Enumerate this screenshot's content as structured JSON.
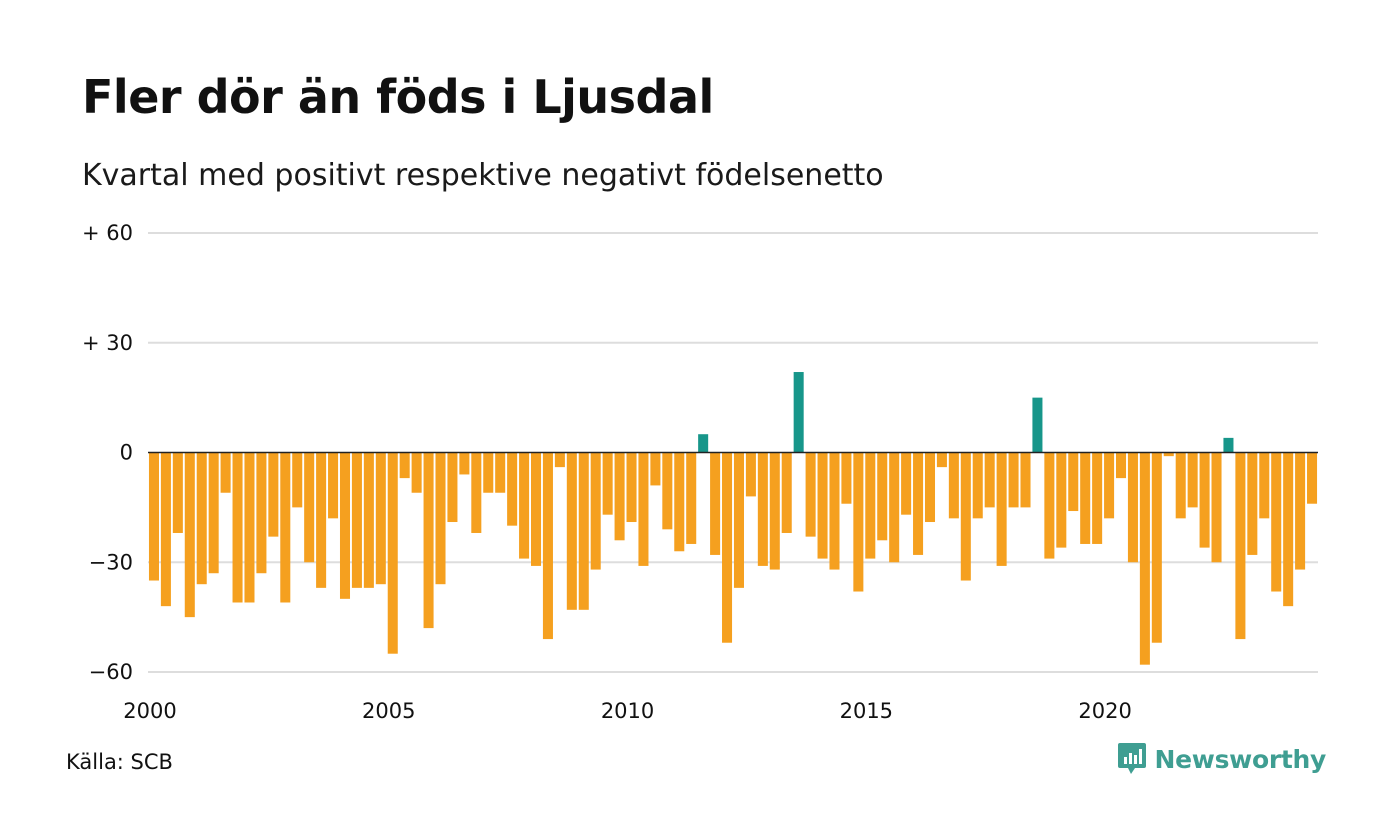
{
  "title": "Fler dör än föds i Ljusdal",
  "subtitle": "Kvartal med positivt respektive negativt födelsenetto",
  "source": "Källa: SCB",
  "logo": {
    "text": "Newsworthy",
    "icon": "chart-speech-bubble-icon"
  },
  "colors": {
    "negative": "#f5a01f",
    "positive": "#17968a",
    "grid": "#dddddd",
    "zero": "#222222"
  },
  "chart_data": {
    "type": "bar",
    "x_start": 2000,
    "x_step": 0.25,
    "ylim": [
      -60,
      60
    ],
    "yticks": [
      {
        "value": 60,
        "label": "+ 60"
      },
      {
        "value": 30,
        "label": "+ 30"
      },
      {
        "value": 0,
        "label": "0"
      },
      {
        "value": -30,
        "label": "−30"
      },
      {
        "value": -60,
        "label": "−60"
      }
    ],
    "xticks": [
      {
        "value": 2000,
        "label": "2000"
      },
      {
        "value": 2005,
        "label": "2005"
      },
      {
        "value": 2010,
        "label": "2010"
      },
      {
        "value": 2015,
        "label": "2015"
      },
      {
        "value": 2020,
        "label": "2020"
      }
    ],
    "values": [
      -35,
      -42,
      -22,
      -45,
      -36,
      -33,
      -11,
      -41,
      -41,
      -33,
      -23,
      -41,
      -15,
      -30,
      -37,
      -18,
      -40,
      -37,
      -37,
      -36,
      -55,
      -7,
      -11,
      -48,
      -36,
      -19,
      -6,
      -22,
      -11,
      -11,
      -20,
      -29,
      -31,
      -51,
      -4,
      -43,
      -43,
      -32,
      -17,
      -24,
      -19,
      -31,
      -9,
      -21,
      -27,
      -25,
      5,
      -28,
      -52,
      -37,
      -12,
      -31,
      -32,
      -22,
      22,
      -23,
      -29,
      -32,
      -14,
      -38,
      -29,
      -24,
      -30,
      -17,
      -28,
      -19,
      -4,
      -18,
      -35,
      -18,
      -15,
      -31,
      -15,
      -15,
      15,
      -29,
      -26,
      -16,
      -25,
      -25,
      -18,
      -7,
      -30,
      -58,
      -52,
      -1,
      -18,
      -15,
      -26,
      -30,
      4,
      -51,
      -28,
      -18,
      -38,
      -42,
      -32,
      -14
    ]
  }
}
